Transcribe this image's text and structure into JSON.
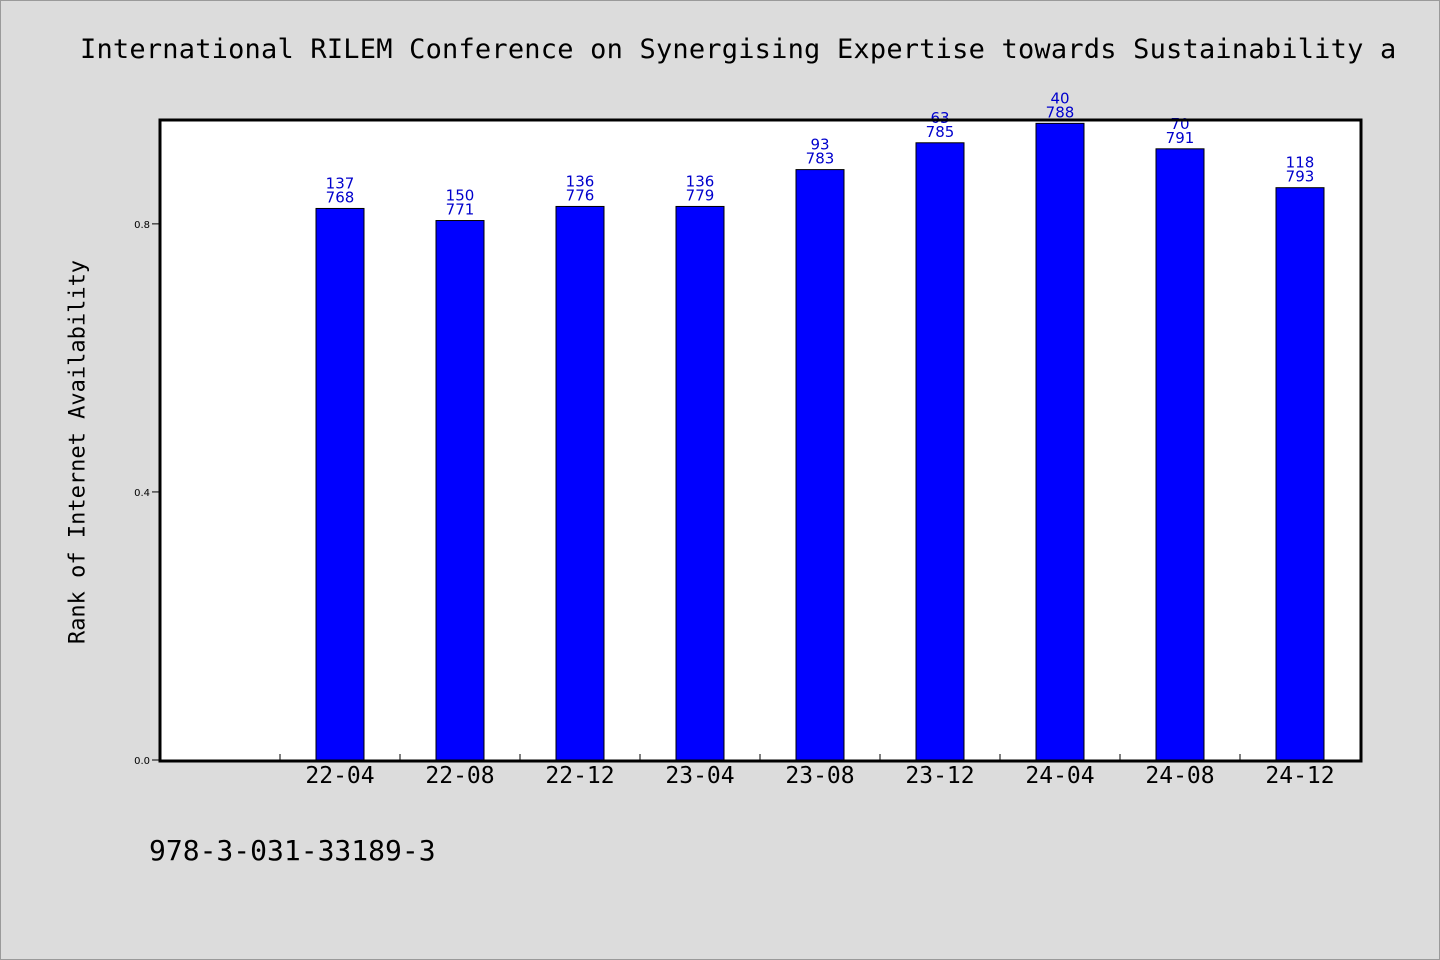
{
  "chart_data": {
    "type": "bar",
    "title": "International RILEM Conference on Synergising Expertise towards Sustainability a",
    "ylabel": "Rank of Internet Availability",
    "xlabel": "",
    "footer_text": "978-3-031-33189-3",
    "ylim": [
      0,
      0.955
    ],
    "yticks": [
      "0.0",
      "0.4",
      "0.8"
    ],
    "ytick_values": [
      0.0,
      0.4,
      0.8
    ],
    "categories": [
      "22-04",
      "22-08",
      "22-12",
      "23-04",
      "23-08",
      "23-12",
      "24-04",
      "24-08",
      "24-12"
    ],
    "values": [
      0.823,
      0.805,
      0.826,
      0.826,
      0.881,
      0.921,
      0.95,
      0.912,
      0.854
    ],
    "label_top": [
      "137",
      "150",
      "136",
      "136",
      "93",
      "63",
      "40",
      "70",
      "118"
    ],
    "label_bottom": [
      "768",
      "771",
      "776",
      "779",
      "783",
      "785",
      "788",
      "791",
      "793"
    ],
    "bar_color": "#0000ff",
    "label_color": "#0000cc",
    "grid": false,
    "legend": "none"
  }
}
